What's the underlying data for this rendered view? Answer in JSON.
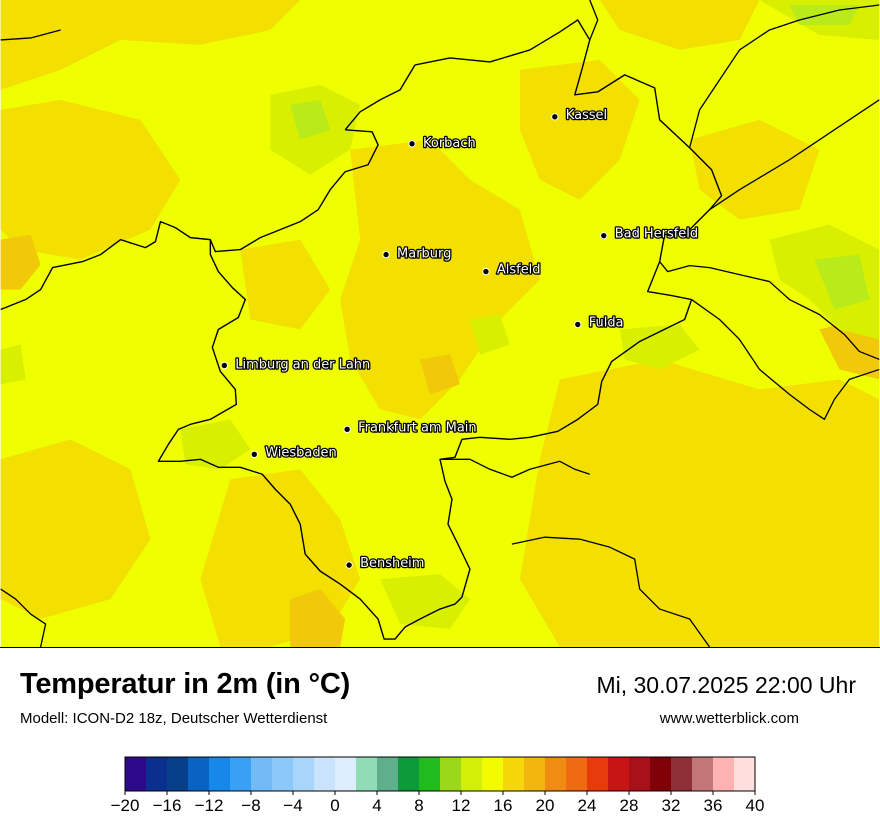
{
  "title": "Temperatur in 2m (in °C)",
  "subtitle": "Modell: ICON-D2 18z, Deutscher Wetterdienst",
  "datetime": "Mi, 30.07.2025 22:00 Uhr",
  "website": "www.wetterblick.com",
  "cities": [
    {
      "name": "Kassel",
      "icon": "city-dot"
    },
    {
      "name": "Korbach",
      "icon": "city-dot"
    },
    {
      "name": "Bad Hersfeld",
      "icon": "city-dot"
    },
    {
      "name": "Marburg",
      "icon": "city-dot"
    },
    {
      "name": "Alsfeld",
      "icon": "city-dot"
    },
    {
      "name": "Fulda",
      "icon": "city-dot"
    },
    {
      "name": "Limburg an der Lahn",
      "icon": "city-dot"
    },
    {
      "name": "Frankfurt am Main",
      "icon": "city-dot"
    },
    {
      "name": "Wiesbaden",
      "icon": "city-dot"
    },
    {
      "name": "Bensheim",
      "icon": "city-dot"
    }
  ],
  "legend": {
    "colors": [
      "#2e0a8a",
      "#0b2f8e",
      "#073f8a",
      "#0a63c2",
      "#1887ea",
      "#3aa0f5",
      "#72bbf7",
      "#8cc8f8",
      "#a8d6fb",
      "#c9e4fc",
      "#dcedfd",
      "#8fdcb6",
      "#5fae8c",
      "#0d9a3a",
      "#22bb1e",
      "#9bd81a",
      "#d2ef08",
      "#f2fb00",
      "#f3d708",
      "#f2b70f",
      "#f18c12",
      "#ef6a12",
      "#e83b0c",
      "#c71516",
      "#a8101a",
      "#7f0007",
      "#8f3038",
      "#c27678",
      "#ffb2b2",
      "#ffdede"
    ],
    "ticks": [
      "−20",
      "−16",
      "−12",
      "−8",
      "−4",
      "0",
      "4",
      "8",
      "12",
      "16",
      "20",
      "24",
      "28",
      "32",
      "36",
      "40"
    ]
  },
  "palette": {
    "base": "#f0ff00",
    "warm": "#f3df00",
    "warmer": "#f2c80a",
    "cool": "#d8f000",
    "cooler": "#b9ea1a"
  }
}
